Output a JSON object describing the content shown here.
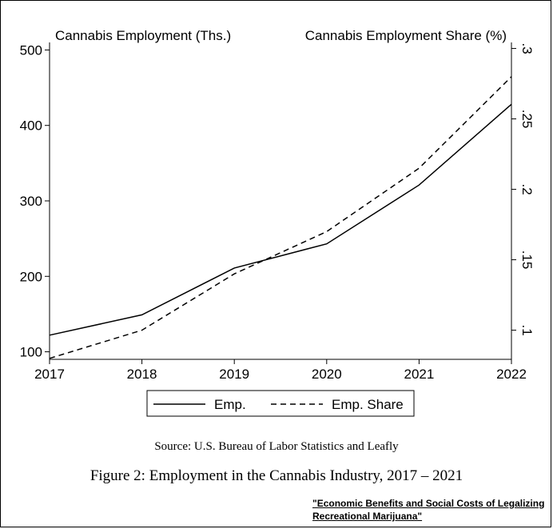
{
  "chart_data": {
    "type": "line",
    "title": "",
    "left_axis_title": "Cannabis Employment (Ths.)",
    "right_axis_title": "Cannabis Employment Share (%)",
    "x": [
      2017,
      2018,
      2019,
      2020,
      2021,
      2022
    ],
    "x_ticks": [
      "2017",
      "2018",
      "2019",
      "2020",
      "2021",
      "2022"
    ],
    "xlim": [
      2017,
      2022
    ],
    "y_left_lim": [
      90,
      510
    ],
    "y_left_ticks": [
      "100",
      "200",
      "300",
      "400",
      "500"
    ],
    "y_right_lim": [
      0.0793,
      0.3043
    ],
    "y_right_ticks": [
      ".1",
      ".15",
      ".2",
      ".25",
      ".3"
    ],
    "series": [
      {
        "name": "Emp.",
        "axis": "left",
        "style": "solid",
        "values": [
          122,
          149,
          211,
          243,
          321,
          428
        ]
      },
      {
        "name": "Emp. Share",
        "axis": "right",
        "style": "dashed",
        "values": [
          0.08,
          0.1,
          0.14,
          0.17,
          0.215,
          0.28
        ]
      }
    ],
    "legend": {
      "position": "bottom",
      "entries": [
        "Emp.",
        "Emp. Share"
      ]
    },
    "grid": false
  },
  "source": "Source: U.S. Bureau of Labor Statistics and Leafly",
  "caption": "Figure 2: Employment in the Cannabis Industry, 2017 – 2021",
  "credit": "\"Economic Benefits and Social Costs of Legalizing Recreational Marijuana\"",
  "colors": {
    "line": "#000000",
    "background": "#ffffff"
  }
}
